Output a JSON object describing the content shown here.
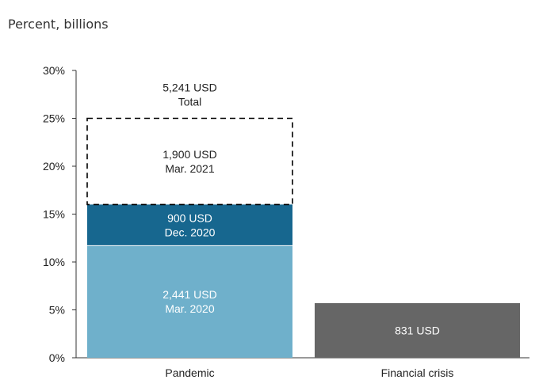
{
  "unit_label": "Percent, billions",
  "chart_data": {
    "type": "bar",
    "stacked": true,
    "ylim": [
      0,
      30
    ],
    "y_ticks": [
      "0%",
      "5%",
      "10%",
      "15%",
      "20%",
      "25%",
      "30%"
    ],
    "y_tick_values": [
      0,
      5,
      10,
      15,
      20,
      25,
      30
    ],
    "grid": false,
    "categories": [
      "Pandemic",
      "Financial crisis"
    ],
    "bars": [
      {
        "category": "Pandemic",
        "total_label": [
          "5,241 USD",
          "Total"
        ],
        "segments": [
          {
            "value": 11.7,
            "labels": [
              "2,441 USD",
              "Mar. 2020"
            ],
            "color": "#6fb0cb",
            "style": "solid"
          },
          {
            "value": 4.3,
            "labels": [
              "900 USD",
              "Dec. 2020"
            ],
            "color": "#17678f",
            "style": "solid"
          },
          {
            "value": 9.0,
            "labels": [
              "1,900 USD",
              "Mar. 2021"
            ],
            "color": "#000000",
            "style": "dashed-outline"
          }
        ]
      },
      {
        "category": "Financial crisis",
        "segments": [
          {
            "value": 5.7,
            "labels": [
              "831 USD"
            ],
            "color": "#666666",
            "style": "solid"
          }
        ]
      }
    ]
  }
}
